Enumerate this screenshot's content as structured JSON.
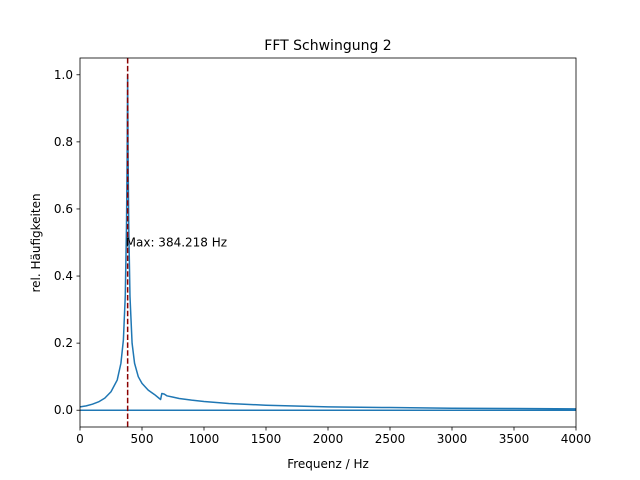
{
  "chart_data": {
    "type": "line",
    "title": "FFT Schwingung 2",
    "xlabel": "Frequenz / Hz",
    "ylabel": "rel. Häufigkeiten",
    "xlim": [
      0,
      4000
    ],
    "ylim": [
      -0.05,
      1.05
    ],
    "x_ticks": [
      0,
      500,
      1000,
      1500,
      2000,
      2500,
      3000,
      3500,
      4000
    ],
    "y_ticks": [
      0.0,
      0.2,
      0.4,
      0.6,
      0.8,
      1.0
    ],
    "x_tick_labels": [
      "0",
      "500",
      "1000",
      "1500",
      "2000",
      "2500",
      "3000",
      "3500",
      "4000"
    ],
    "y_tick_labels": [
      "0.0",
      "0.2",
      "0.4",
      "0.6",
      "0.8",
      "1.0"
    ],
    "grid": false,
    "series": [
      {
        "color": "#1f77b4",
        "x": [
          0,
          50,
          100,
          150,
          200,
          250,
          300,
          330,
          350,
          365,
          375,
          380,
          384.218,
          388,
          393,
          403,
          420,
          440,
          470,
          500,
          550,
          600,
          640,
          650,
          660,
          680,
          700,
          750,
          800,
          900,
          1000,
          1200,
          1500,
          2000,
          2500,
          3000,
          3500,
          4000
        ],
        "y": [
          0.01,
          0.013,
          0.018,
          0.025,
          0.036,
          0.055,
          0.09,
          0.14,
          0.21,
          0.34,
          0.55,
          0.75,
          1.0,
          0.75,
          0.55,
          0.34,
          0.2,
          0.14,
          0.1,
          0.08,
          0.06,
          0.047,
          0.035,
          0.032,
          0.05,
          0.048,
          0.043,
          0.039,
          0.035,
          0.03,
          0.026,
          0.02,
          0.015,
          0.01,
          0.008,
          0.006,
          0.005,
          0.004
        ]
      }
    ],
    "baseline": {
      "y": 0.0,
      "color": "#1f77b4"
    },
    "vline": {
      "x": 384.218,
      "color": "#8b0000",
      "style": "dashed"
    },
    "annotation": {
      "text": "Max: 384.218 Hz",
      "x": 384.218,
      "y": 0.5
    }
  }
}
